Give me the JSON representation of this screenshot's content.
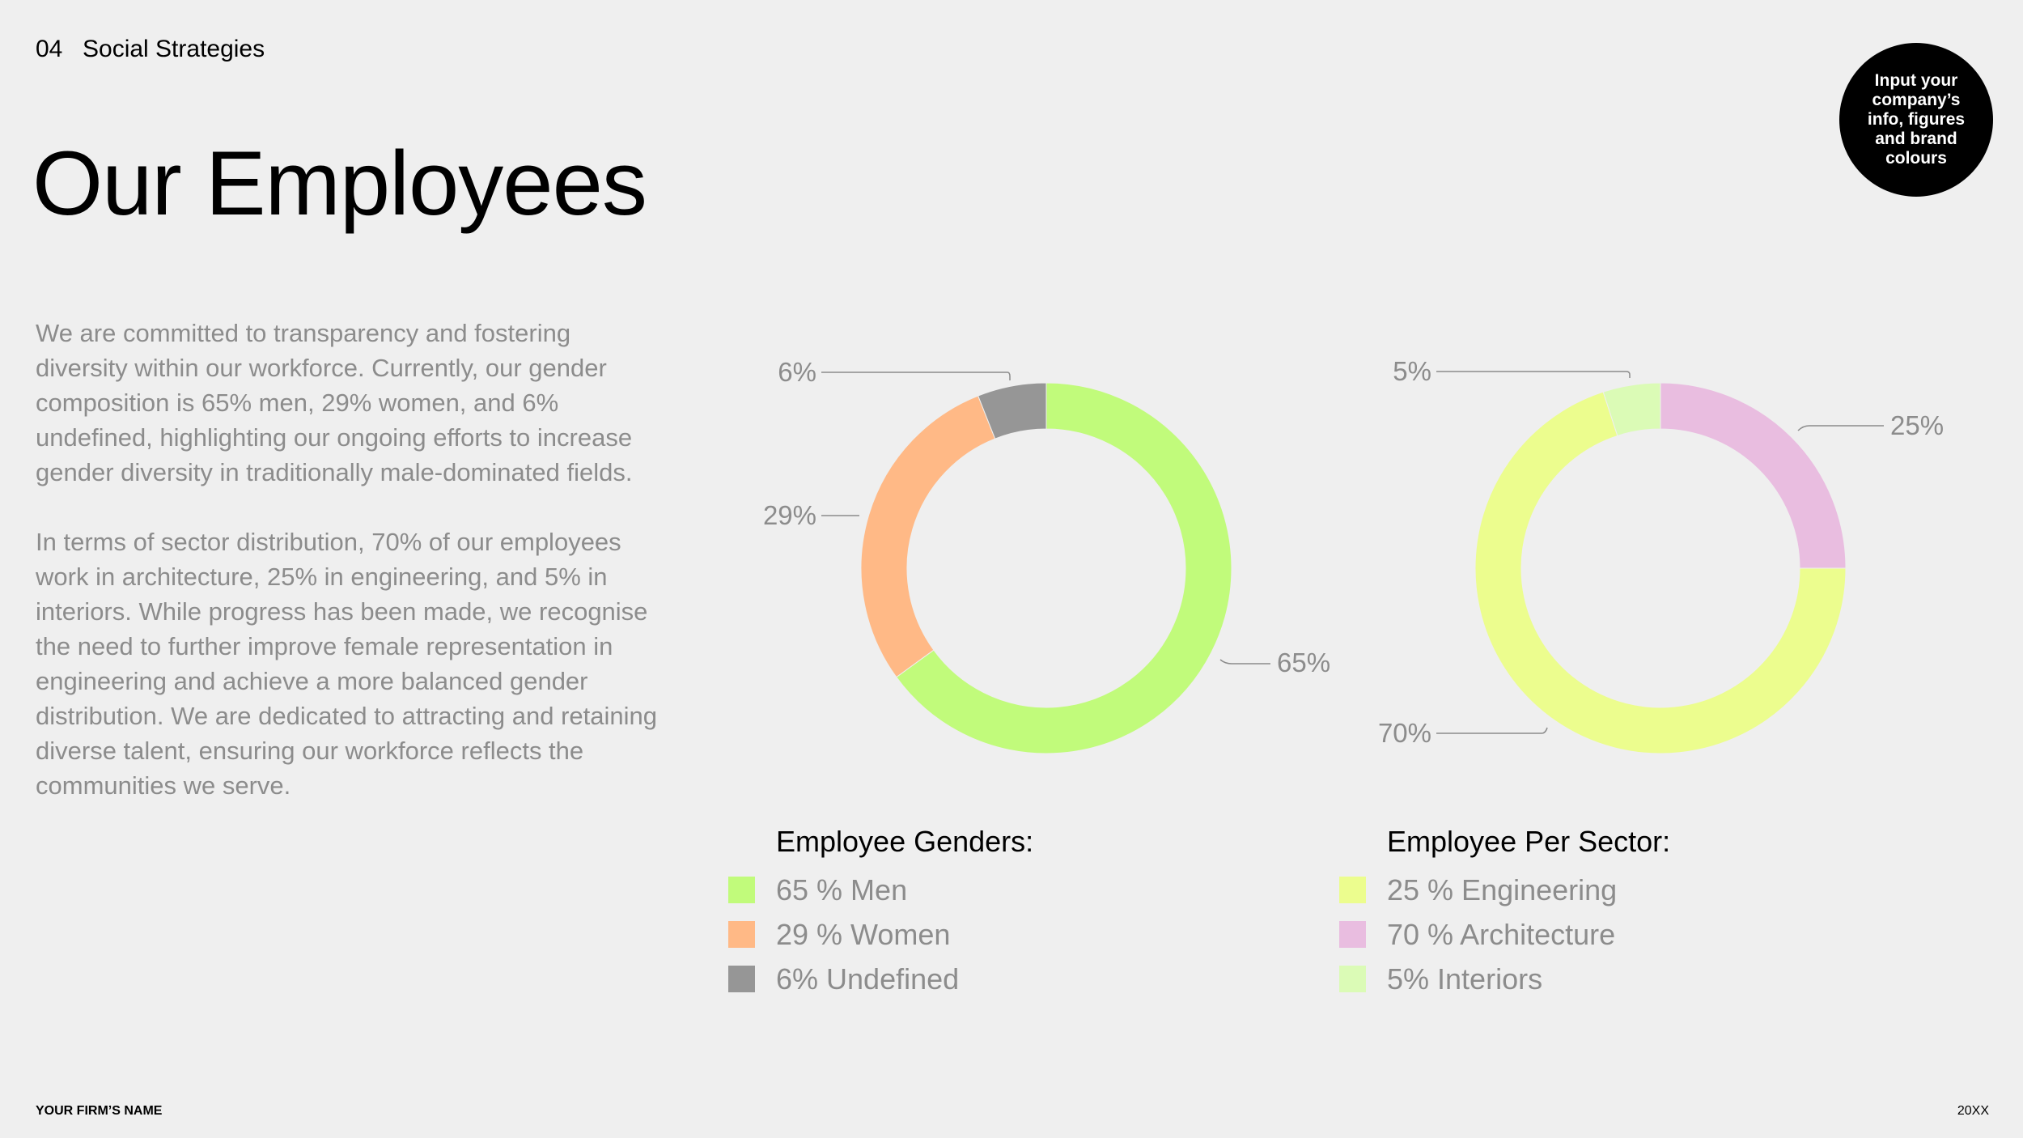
{
  "header": {
    "section_number": "04",
    "section_title": "Social Strategies",
    "page_title": "Our Employees",
    "note": "Input your company’s info, figures and brand colours"
  },
  "body": {
    "paragraph_1": "We are committed to transparency and fostering diversity within our workforce. Currently, our gender composition is 65% men, 29% women, and 6% undefined, highlighting our ongoing efforts to increase gender diversity in traditionally male-dominated fields.",
    "paragraph_2": "In terms of sector distribution, 70% of our employees work in architecture, 25% in engineering, and 5% in interiors. While progress has been made, we recognise the need to further improve female representation in engineering and achieve a more balanced gender distribution. We are dedicated to attracting and retaining diverse talent, ensuring our workforce reflects the communities we serve."
  },
  "chart_data": [
    {
      "type": "pie",
      "subtype": "donut",
      "title": "Employee Genders:",
      "slices": [
        {
          "label": "Men",
          "value": 65,
          "data_label": "65%",
          "color": "#c1fb7b"
        },
        {
          "label": "Women",
          "value": 29,
          "data_label": "29%",
          "color": "#ffb986"
        },
        {
          "label": "Undefined",
          "value": 6,
          "data_label": "6%",
          "color": "#969696"
        }
      ],
      "legend": [
        "65 % Men",
        "29 % Women",
        "6% Undefined"
      ],
      "legend_position": "bottom"
    },
    {
      "type": "pie",
      "subtype": "donut",
      "title": "Employee Per Sector:",
      "slices": [
        {
          "label": "Engineering",
          "value": 25,
          "data_label": "25%",
          "color": "#e9bde0"
        },
        {
          "label": "Architecture",
          "value": 70,
          "data_label": "70%",
          "color": "#ecfd8e"
        },
        {
          "label": "Interiors",
          "value": 5,
          "data_label": "5%",
          "color": "#dbfbb6"
        }
      ],
      "legend": [
        "25 % Engineering",
        "70 % Architecture",
        "5% Interiors"
      ],
      "legend_colors": [
        "#ecfd8e",
        "#e9bde0",
        "#dbfbb6"
      ],
      "legend_position": "bottom"
    }
  ],
  "footer": {
    "firm_name": "YOUR FIRM’S NAME",
    "year": "20XX"
  }
}
